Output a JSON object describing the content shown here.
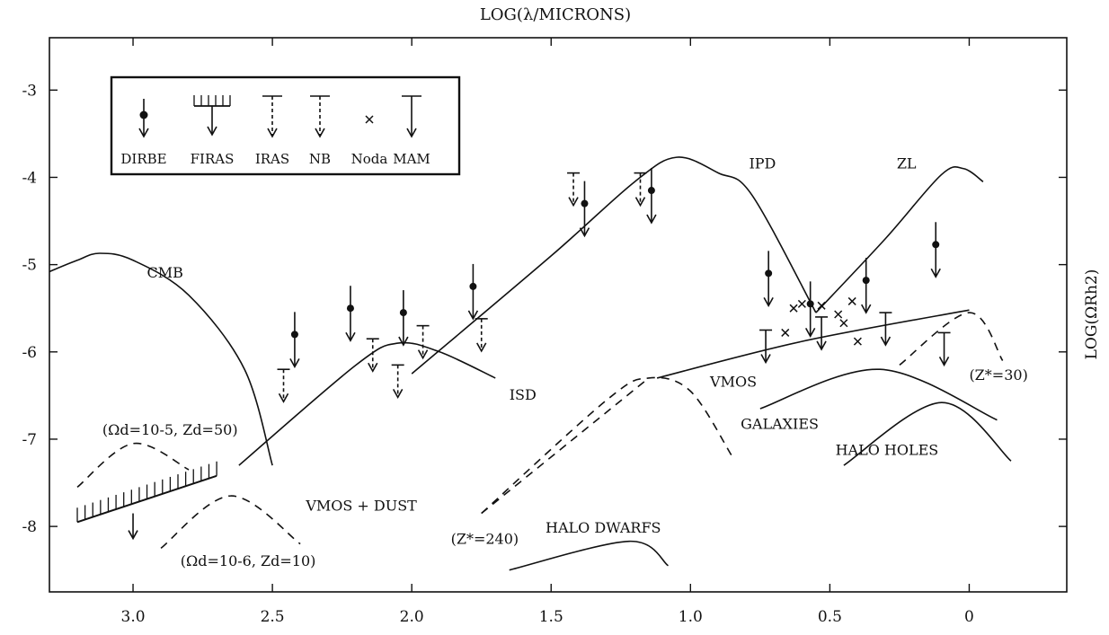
{
  "chart_data": {
    "type": "line",
    "title": "",
    "xlabel": "LOG(λ/MICRONS)",
    "ylabel": "LOG(ΩRh2)",
    "xlim": [
      3.3,
      -0.35
    ],
    "ylim": [
      -8.75,
      -2.4
    ],
    "x_ticks": [
      "3.0",
      "2.5",
      "2.0",
      "1.5",
      "1.0",
      "0.5",
      "0"
    ],
    "y_ticks": [
      "-3",
      "-4",
      "-5",
      "-6",
      "-7",
      "-8"
    ],
    "grid": false,
    "legend": {
      "position": "top-left",
      "entries": [
        "DIRBE",
        "FIRAS",
        "IRAS",
        "NB",
        "Noda",
        "MAM"
      ]
    },
    "curves": [
      {
        "label": "CMB",
        "style": "solid",
        "points": [
          [
            3.3,
            -5.08
          ],
          [
            3.2,
            -4.95
          ],
          [
            3.12,
            -4.87
          ],
          [
            3.0,
            -4.95
          ],
          [
            2.8,
            -5.35
          ],
          [
            2.6,
            -6.2
          ],
          [
            2.5,
            -7.3
          ]
        ]
      },
      {
        "label": "IPD",
        "style": "solid",
        "points": [
          [
            2.0,
            -6.25
          ],
          [
            1.5,
            -4.9
          ],
          [
            1.2,
            -4.05
          ],
          [
            1.05,
            -3.77
          ],
          [
            0.9,
            -3.95
          ],
          [
            0.78,
            -4.2
          ],
          [
            0.55,
            -5.55
          ]
        ]
      },
      {
        "label": "ZL",
        "style": "solid",
        "points": [
          [
            0.55,
            -5.55
          ],
          [
            0.3,
            -4.7
          ],
          [
            0.1,
            -3.97
          ],
          [
            0.02,
            -3.9
          ],
          [
            -0.05,
            -4.05
          ]
        ]
      },
      {
        "label": "ISD",
        "style": "solid",
        "points": [
          [
            2.62,
            -7.3
          ],
          [
            2.2,
            -6.15
          ],
          [
            2.05,
            -5.9
          ],
          [
            1.9,
            -6.0
          ],
          [
            1.7,
            -6.3
          ]
        ]
      },
      {
        "label": "VMOS",
        "style": "solid",
        "points": [
          [
            1.12,
            -6.3
          ],
          [
            0.6,
            -5.88
          ],
          [
            0.0,
            -5.52
          ]
        ]
      },
      {
        "label": "VMOS + DUST",
        "style": "dashed",
        "points": [
          [
            1.75,
            -7.85
          ],
          [
            1.3,
            -6.55
          ],
          [
            1.15,
            -6.3
          ],
          [
            1.0,
            -6.45
          ],
          [
            0.85,
            -7.2
          ]
        ]
      },
      {
        "label": "(Z*=240)",
        "style": "dashed",
        "points": [
          [
            1.75,
            -7.85
          ],
          [
            1.15,
            -6.3
          ]
        ]
      },
      {
        "label": "(Z*=30)",
        "style": "dashed",
        "points": [
          [
            0.25,
            -6.15
          ],
          [
            0.0,
            -5.55
          ],
          [
            -0.12,
            -6.1
          ]
        ]
      },
      {
        "label": "(Ωd=10-5, Zd=50)",
        "style": "dashed",
        "points": [
          [
            3.2,
            -7.55
          ],
          [
            3.0,
            -7.05
          ],
          [
            2.8,
            -7.35
          ]
        ]
      },
      {
        "label": "(Ωd=10-6, Zd=10)",
        "style": "dashed",
        "points": [
          [
            2.9,
            -8.25
          ],
          [
            2.65,
            -7.65
          ],
          [
            2.4,
            -8.2
          ]
        ]
      },
      {
        "label": "GALAXIES",
        "style": "solid",
        "points": [
          [
            0.75,
            -6.65
          ],
          [
            0.32,
            -6.2
          ],
          [
            -0.1,
            -6.78
          ]
        ]
      },
      {
        "label": "HALO HOLES",
        "style": "solid",
        "points": [
          [
            0.45,
            -7.3
          ],
          [
            0.1,
            -6.58
          ],
          [
            -0.15,
            -7.25
          ]
        ]
      },
      {
        "label": "HALO DWARFS",
        "style": "solid",
        "points": [
          [
            1.65,
            -8.5
          ],
          [
            1.22,
            -8.17
          ],
          [
            1.08,
            -8.45
          ]
        ]
      }
    ],
    "upper_limits": [
      {
        "instrument": "DIRBE",
        "x": 2.42,
        "y": -5.8
      },
      {
        "instrument": "DIRBE",
        "x": 2.22,
        "y": -5.5
      },
      {
        "instrument": "DIRBE",
        "x": 2.03,
        "y": -5.55
      },
      {
        "instrument": "DIRBE",
        "x": 1.78,
        "y": -5.25
      },
      {
        "instrument": "DIRBE",
        "x": 1.38,
        "y": -4.3
      },
      {
        "instrument": "DIRBE",
        "x": 1.14,
        "y": -4.15
      },
      {
        "instrument": "DIRBE",
        "x": 0.72,
        "y": -5.1
      },
      {
        "instrument": "DIRBE",
        "x": 0.57,
        "y": -5.45
      },
      {
        "instrument": "DIRBE",
        "x": 0.37,
        "y": -5.18
      },
      {
        "instrument": "DIRBE",
        "x": 0.12,
        "y": -4.77
      },
      {
        "instrument": "IRAS",
        "x": 2.46,
        "y": -6.2
      },
      {
        "instrument": "IRAS",
        "x": 2.14,
        "y": -5.85
      },
      {
        "instrument": "IRAS",
        "x": 2.05,
        "y": -6.15
      },
      {
        "instrument": "IRAS",
        "x": 1.96,
        "y": -5.7
      },
      {
        "instrument": "IRAS",
        "x": 1.42,
        "y": -3.95
      },
      {
        "instrument": "IRAS",
        "x": 1.18,
        "y": -3.95
      },
      {
        "instrument": "NB",
        "x": 1.75,
        "y": -5.62
      },
      {
        "instrument": "MAM",
        "x": 0.73,
        "y": -5.75
      },
      {
        "instrument": "MAM",
        "x": 0.53,
        "y": -5.6
      },
      {
        "instrument": "MAM",
        "x": 0.3,
        "y": -5.55
      },
      {
        "instrument": "MAM",
        "x": 0.09,
        "y": -5.78
      },
      {
        "instrument": "FIRAS",
        "x": 3.0,
        "y": -7.85
      }
    ],
    "noda_points": [
      [
        0.66,
        -5.78
      ],
      [
        0.63,
        -5.5
      ],
      [
        0.6,
        -5.45
      ],
      [
        0.53,
        -5.47
      ],
      [
        0.47,
        -5.57
      ],
      [
        0.45,
        -5.67
      ],
      [
        0.42,
        -5.42
      ],
      [
        0.4,
        -5.88
      ]
    ],
    "curve_labels": [
      {
        "text": "CMB",
        "x": 2.95,
        "y": -5.15
      },
      {
        "text": "IPD",
        "x": 0.79,
        "y": -3.9
      },
      {
        "text": "ZL",
        "x": 0.26,
        "y": -3.9
      },
      {
        "text": "ISD",
        "x": 1.65,
        "y": -6.55
      },
      {
        "text": "VMOS",
        "x": 0.93,
        "y": -6.4
      },
      {
        "text": "(Z*=30)",
        "x": 0.0,
        "y": -6.32
      },
      {
        "text": "(Ωd=10-5, Zd=50)",
        "x": 3.11,
        "y": -6.95
      },
      {
        "text": "VMOS + DUST",
        "x": 2.38,
        "y": -7.82
      },
      {
        "text": "(Ωd=10-6, Zd=10)",
        "x": 2.83,
        "y": -8.45
      },
      {
        "text": "(Z*=240)",
        "x": 1.86,
        "y": -8.2
      },
      {
        "text": "HALO DWARFS",
        "x": 1.52,
        "y": -8.07
      },
      {
        "text": "GALAXIES",
        "x": 0.82,
        "y": -6.88
      },
      {
        "text": "HALO HOLES",
        "x": 0.48,
        "y": -7.18
      }
    ]
  }
}
